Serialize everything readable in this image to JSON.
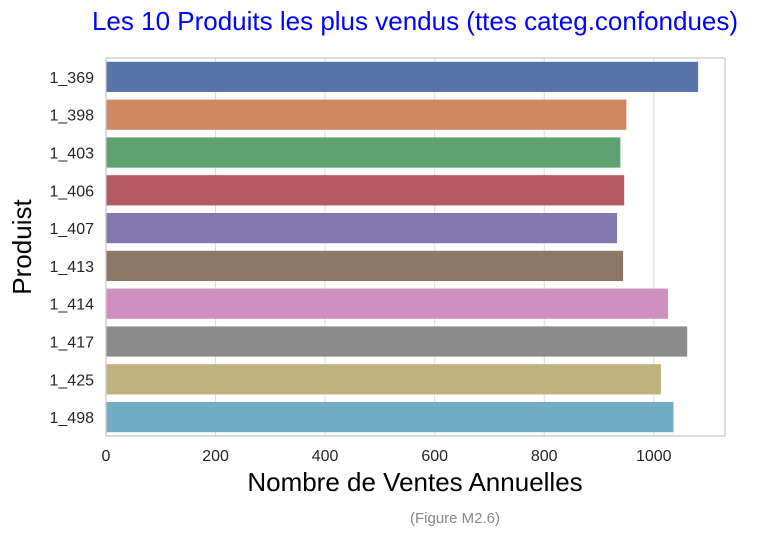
{
  "chart_data": {
    "type": "bar",
    "orientation": "horizontal",
    "title": "Les 10 Produits les plus vendus (ttes categ.confondues)",
    "xlabel": "Nombre de Ventes Annuelles",
    "ylabel": "Produist",
    "categories": [
      "1_369",
      "1_398",
      "1_403",
      "1_406",
      "1_407",
      "1_413",
      "1_414",
      "1_417",
      "1_425",
      "1_498"
    ],
    "values": [
      1081,
      950,
      939,
      946,
      933,
      944,
      1026,
      1061,
      1013,
      1036
    ],
    "colors": [
      "#5874a8",
      "#cf8962",
      "#5fa06f",
      "#b55a60",
      "#8479ad",
      "#8c7866",
      "#cf90c1",
      "#8c8c8c",
      "#c0b27e",
      "#72adc4"
    ],
    "xlim": [
      0,
      1130
    ],
    "xticks": [
      0,
      200,
      400,
      600,
      800,
      1000
    ],
    "grid": true,
    "title_color": "#0000ff"
  },
  "caption": "(Figure M2.6)"
}
